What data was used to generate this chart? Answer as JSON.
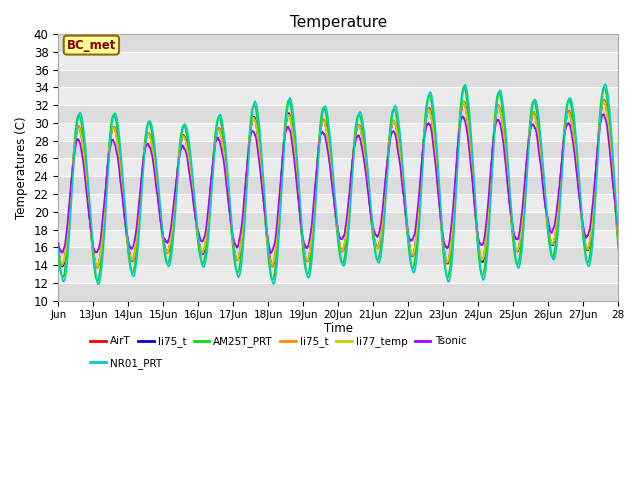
{
  "title": "Temperature",
  "ylabel": "Temperatures (C)",
  "xlabel": "Time",
  "xlim": [
    0,
    16
  ],
  "ylim": [
    10,
    40
  ],
  "yticks": [
    10,
    12,
    14,
    16,
    18,
    20,
    22,
    24,
    26,
    28,
    30,
    32,
    34,
    36,
    38,
    40
  ],
  "xtick_pos": [
    0,
    1,
    2,
    3,
    4,
    5,
    6,
    7,
    8,
    9,
    10,
    11,
    12,
    13,
    14,
    15,
    16
  ],
  "xtick_labels": [
    "Jun",
    "13Jun",
    "14Jun",
    "15Jun",
    "16Jun",
    "17Jun",
    "18Jun",
    "19Jun",
    "20Jun",
    "21Jun",
    "22Jun",
    "23Jun",
    "24Jun",
    "25Jun",
    "26Jun",
    "27Jun",
    "28"
  ],
  "series": [
    {
      "name": "AirT",
      "color": "#ff0000",
      "lw": 1.2,
      "phase": 0.0,
      "amp_scale": 1.0,
      "noise": 0.3
    },
    {
      "name": "li75_t",
      "color": "#0000cc",
      "lw": 1.2,
      "phase": 0.05,
      "amp_scale": 1.0,
      "noise": 0.3
    },
    {
      "name": "AM25T_PRT",
      "color": "#00dd00",
      "lw": 1.2,
      "phase": 0.0,
      "amp_scale": 1.18,
      "noise": 0.2
    },
    {
      "name": "li75_t",
      "color": "#ff8800",
      "lw": 1.2,
      "phase": 0.05,
      "amp_scale": 1.0,
      "noise": 0.3
    },
    {
      "name": "li77_temp",
      "color": "#cccc00",
      "lw": 1.2,
      "phase": 0.05,
      "amp_scale": 0.98,
      "noise": 0.3
    },
    {
      "name": "Tsonic",
      "color": "#aa00ff",
      "lw": 1.2,
      "phase": 0.15,
      "amp_scale": 0.82,
      "noise": 0.5
    },
    {
      "name": "NR01_PRT",
      "color": "#00cccc",
      "lw": 1.2,
      "phase": -0.2,
      "amp_scale": 1.22,
      "noise": 0.2
    }
  ],
  "annotation_text": "BC_met",
  "stripe_colors": [
    "#dcdcdc",
    "#ebebeb"
  ]
}
